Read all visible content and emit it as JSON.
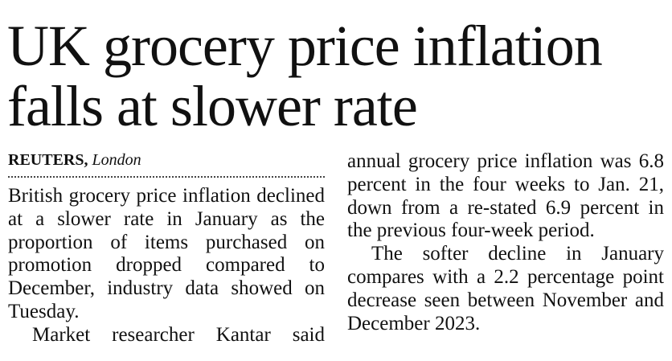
{
  "article": {
    "headline": "UK grocery price inflation falls at slower rate",
    "byline": {
      "agency": "REUTERS,",
      "city": "London"
    },
    "paragraphs": [
      "British grocery price inflation declined at a slower rate in January as the proportion of items purchased on promotion dropped compared to December, industry data showed on Tuesday.",
      "Market researcher Kantar said",
      "annual grocery price inflation was 6.8 percent in the four weeks to Jan. 21, down from a re-stated 6.9 percent in the previous four-week period.",
      "The softer decline in January compares with a 2.2 percentage point decrease seen between November and December 2023."
    ]
  }
}
